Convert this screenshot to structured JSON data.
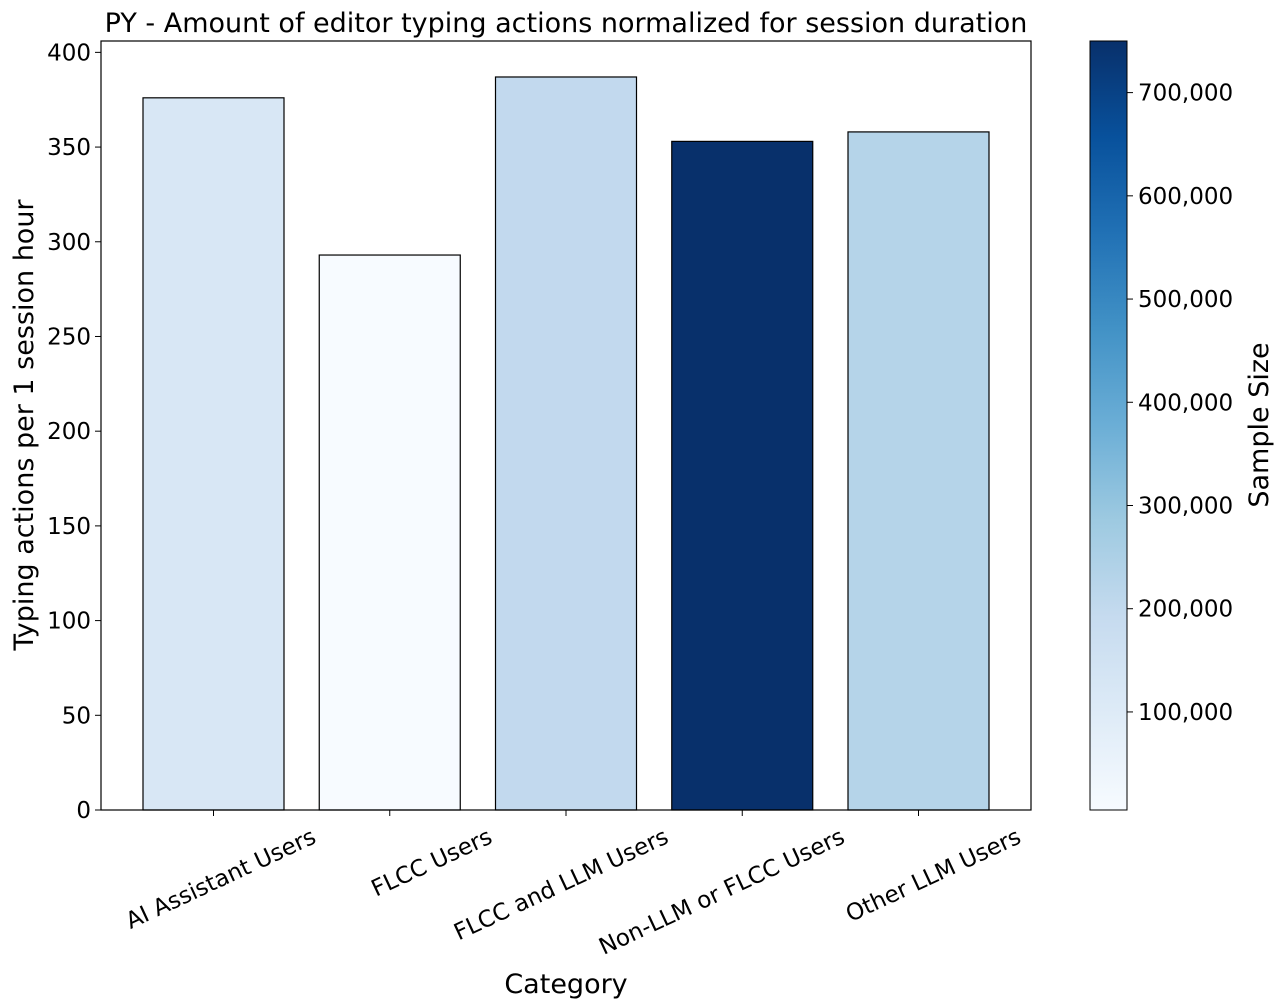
{
  "chart_data": {
    "type": "bar",
    "title": "PY - Amount of editor typing actions normalized for session duration",
    "xlabel": "Category",
    "ylabel": "Typing actions per 1 session hour",
    "categories": [
      "AI Assistant Users",
      "FLCC Users",
      "FLCC and LLM Users",
      "Non-LLM or FLCC Users",
      "Other LLM Users"
    ],
    "values": [
      376,
      293,
      387,
      353,
      358
    ],
    "sample_sizes": [
      120000,
      5000,
      200000,
      750000,
      230000
    ],
    "ylim": [
      0,
      406
    ],
    "yticks": [
      "0",
      "50",
      "100",
      "150",
      "200",
      "250",
      "300",
      "350",
      "400"
    ],
    "grid": false,
    "colorbar": {
      "label": "Sample Size",
      "range": [
        5000,
        750000
      ],
      "ticks": [
        {
          "value": 100000,
          "label": "100,000"
        },
        {
          "value": 200000,
          "label": "200,000"
        },
        {
          "value": 300000,
          "label": "300,000"
        },
        {
          "value": 400000,
          "label": "400,000"
        },
        {
          "value": 500000,
          "label": "500,000"
        },
        {
          "value": 600000,
          "label": "600,000"
        },
        {
          "value": 700000,
          "label": "700,000"
        }
      ],
      "colormap": "Blues"
    }
  }
}
